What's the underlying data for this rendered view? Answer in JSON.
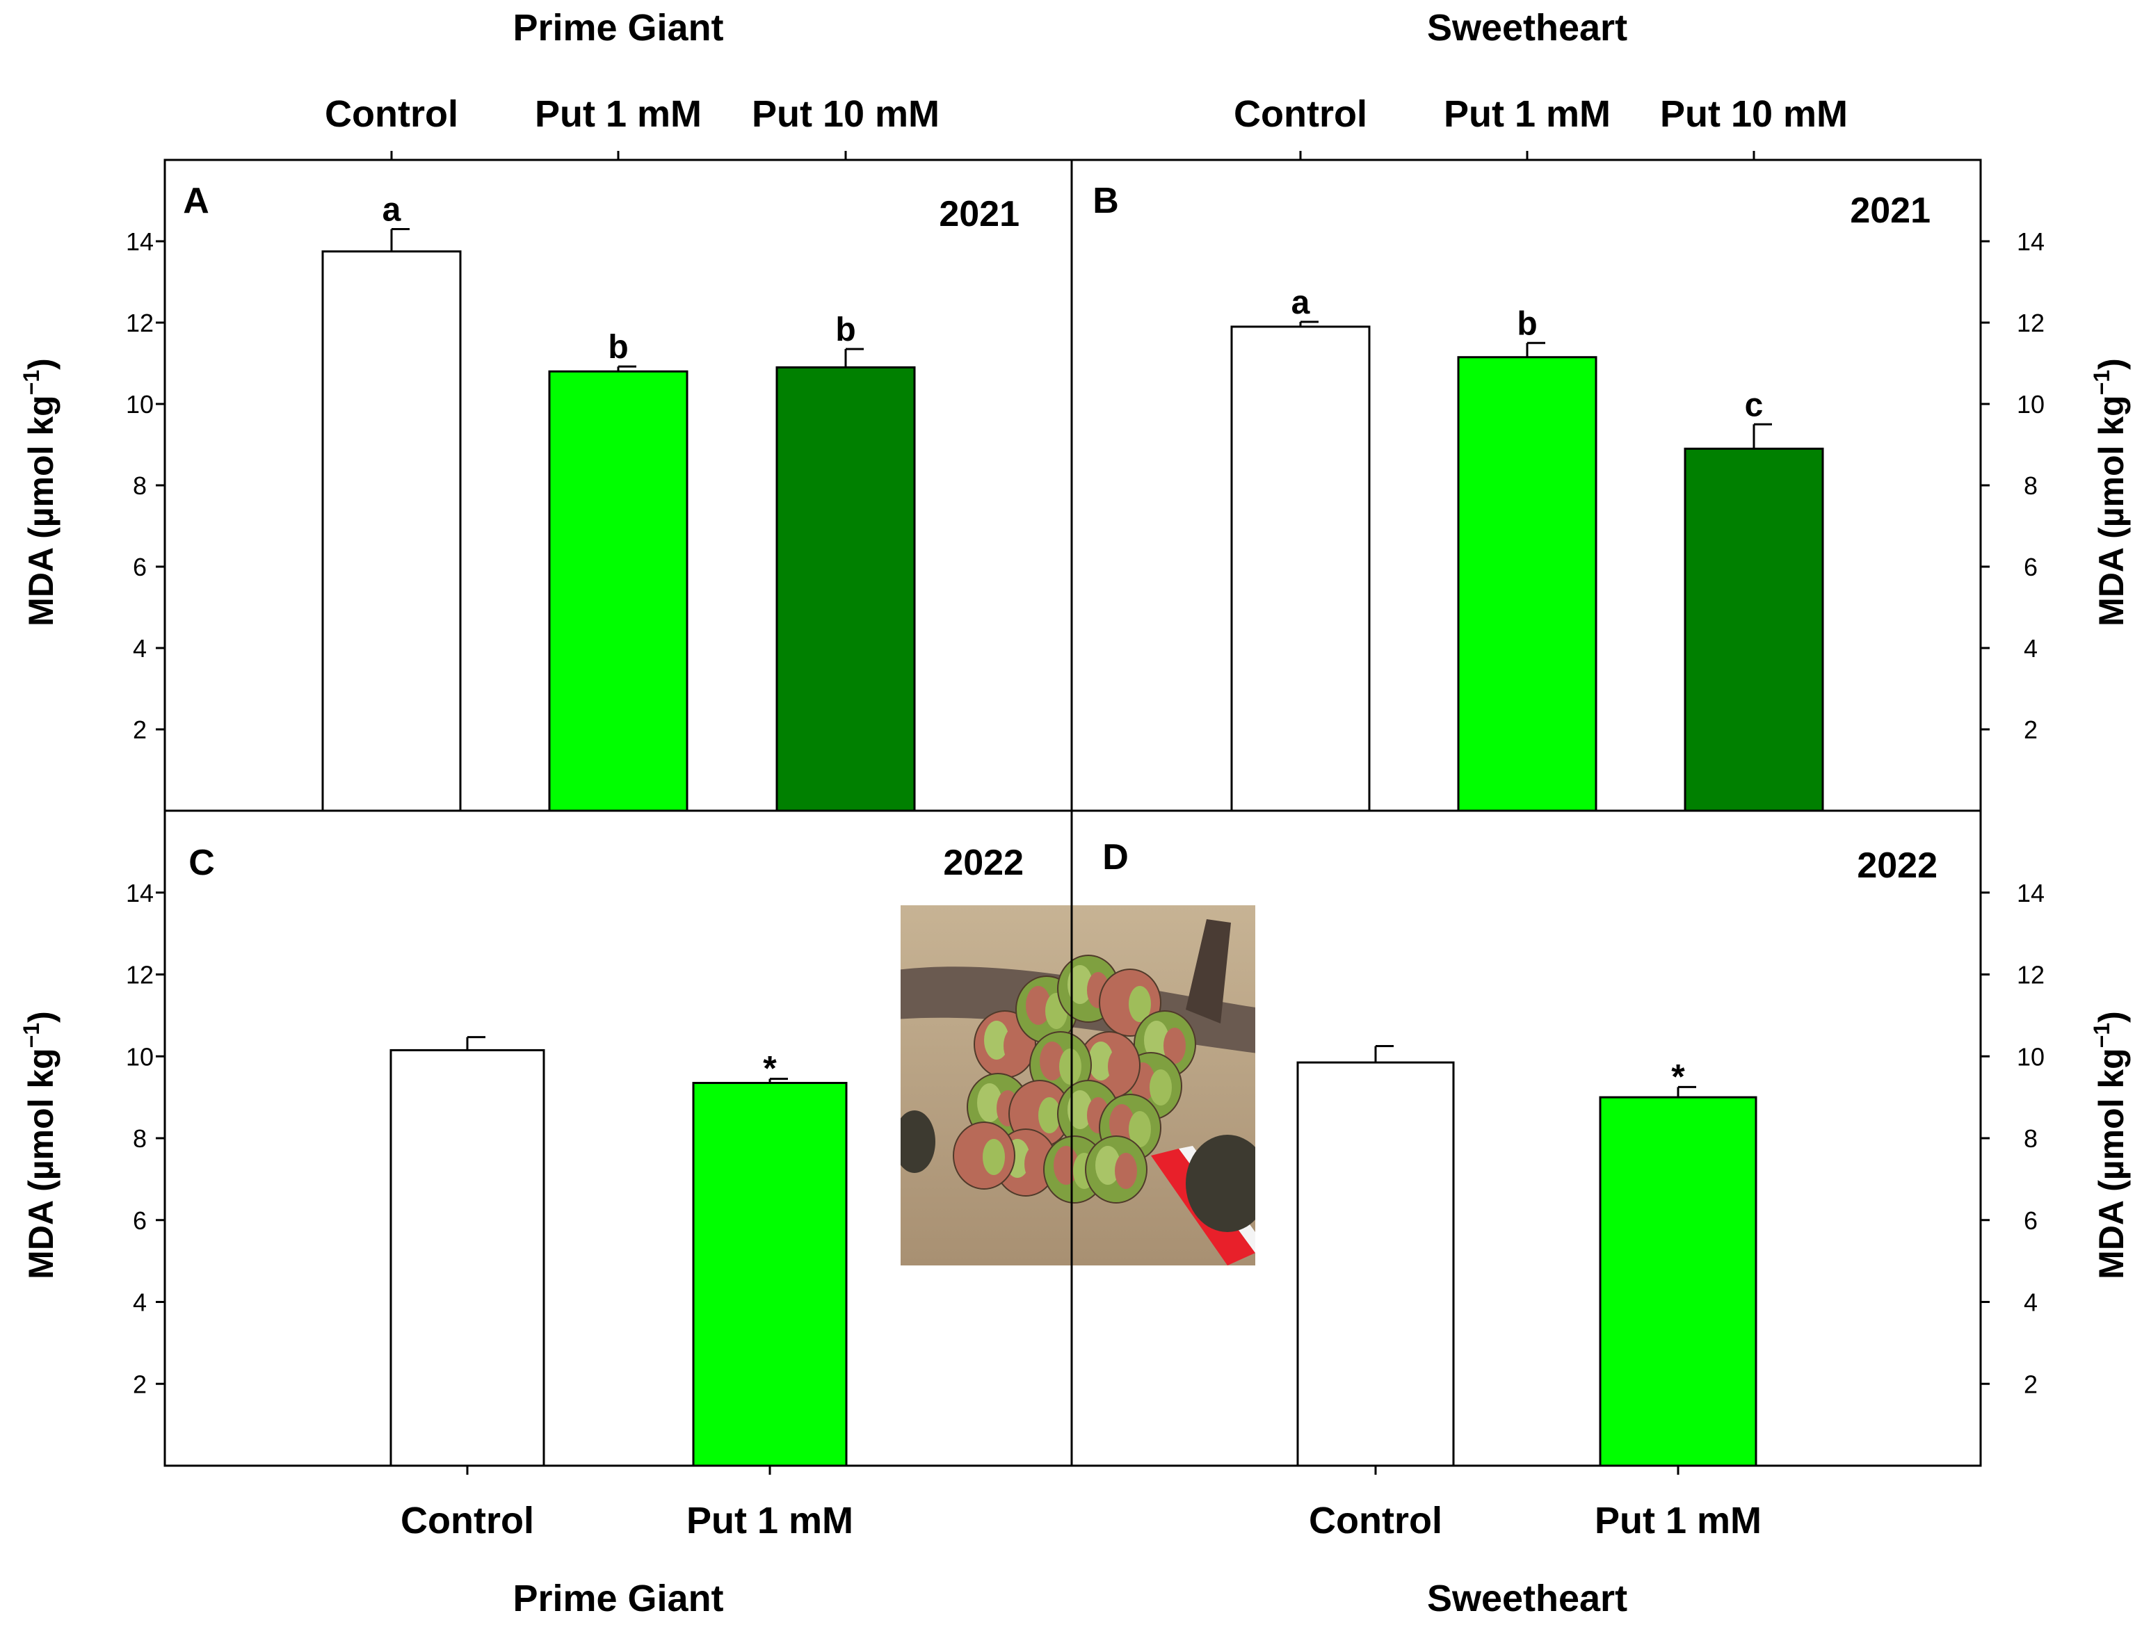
{
  "figure": {
    "cultivars": [
      "Prime Giant",
      "Sweetheart"
    ],
    "ylabel": {
      "main": "MDA (µmol kg",
      "sup": "−1",
      "close": ")"
    },
    "colors": {
      "Control": "#ffffff",
      "Put 1 mM": "#00ff00",
      "Put 10 mM": "#008000",
      "outline": "#000000",
      "photo_bg": "#b9a485",
      "branch": "#6a5a50",
      "bud_green": "#7fa040",
      "bud_red": "#b86a58",
      "ribbon": "#e8202a"
    },
    "photo_inset": {
      "subject": "cherry-flower-buds",
      "panel": "C"
    }
  },
  "chart_data": [
    {
      "type": "bar",
      "panel": "A",
      "year": "2021",
      "cultivar": "Prime Giant",
      "categories": [
        "Control",
        "Put 1 mM",
        "Put 10 mM"
      ],
      "values": [
        13.75,
        10.8,
        10.9
      ],
      "errors": [
        0.55,
        0.12,
        0.45
      ],
      "letters": [
        "a",
        "b",
        "b"
      ],
      "ylim": [
        0,
        16
      ],
      "yticks": [
        2,
        4,
        6,
        8,
        10,
        12,
        14
      ],
      "yaxis": "left",
      "xaxis": "top",
      "cultivar_label": "top",
      "ylabel": "MDA (µmol kg−1)"
    },
    {
      "type": "bar",
      "panel": "B",
      "year": "2021",
      "cultivar": "Sweetheart",
      "categories": [
        "Control",
        "Put 1 mM",
        "Put 10 mM"
      ],
      "values": [
        11.9,
        11.15,
        8.9
      ],
      "errors": [
        0.12,
        0.35,
        0.6
      ],
      "letters": [
        "a",
        "b",
        "c"
      ],
      "ylim": [
        0,
        16
      ],
      "yticks": [
        2,
        4,
        6,
        8,
        10,
        12,
        14
      ],
      "yaxis": "right",
      "xaxis": "top",
      "cultivar_label": "top",
      "ylabel": "MDA (µmol kg−1)"
    },
    {
      "type": "bar",
      "panel": "C",
      "year": "2022",
      "cultivar": "Prime Giant",
      "categories": [
        "Control",
        "Put 1 mM"
      ],
      "values": [
        10.15,
        9.35
      ],
      "errors": [
        0.32,
        0.1
      ],
      "letters": [
        "",
        "*"
      ],
      "ylim": [
        0,
        16
      ],
      "yticks": [
        2,
        4,
        6,
        8,
        10,
        12,
        14
      ],
      "yaxis": "left",
      "xaxis": "bottom",
      "cultivar_label": "bottom",
      "ylabel": "MDA (µmol kg−1)"
    },
    {
      "type": "bar",
      "panel": "D",
      "year": "2022",
      "cultivar": "Sweetheart",
      "categories": [
        "Control",
        "Put 1 mM"
      ],
      "values": [
        9.85,
        9.0
      ],
      "errors": [
        0.4,
        0.25
      ],
      "letters": [
        "",
        "*"
      ],
      "ylim": [
        0,
        16
      ],
      "yticks": [
        2,
        4,
        6,
        8,
        10,
        12,
        14
      ],
      "yaxis": "right",
      "xaxis": "bottom",
      "cultivar_label": "bottom",
      "ylabel": "MDA (µmol kg−1)"
    }
  ]
}
